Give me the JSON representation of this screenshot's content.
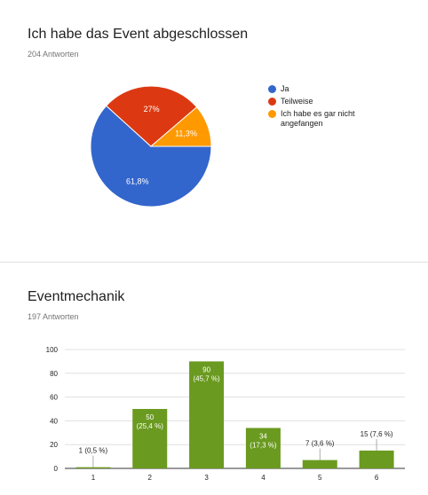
{
  "poll1": {
    "title": "Ich habe das Event abgeschlossen",
    "responses": "204 Antworten",
    "chart_data": {
      "type": "pie",
      "slices": [
        {
          "label": "Ja",
          "value": 61.8,
          "display": "61,8%",
          "color": "#3366cc"
        },
        {
          "label": "Teilweise",
          "value": 27,
          "display": "27%",
          "color": "#dc3912"
        },
        {
          "label": "Ich habe es gar nicht angefangen",
          "value": 11.3,
          "display": "11,3%",
          "color": "#ff9900"
        }
      ],
      "legend": "right"
    }
  },
  "poll2": {
    "title": "Eventmechanik",
    "responses": "197 Antworten",
    "chart_data": {
      "type": "bar",
      "categories": [
        "1",
        "2",
        "3",
        "4",
        "5",
        "6"
      ],
      "values": [
        1,
        50,
        90,
        34,
        7,
        15
      ],
      "labels": [
        [
          "1 (0,5 %)"
        ],
        [
          "50",
          "(25,4 %)"
        ],
        [
          "90",
          "(45,7 %)"
        ],
        [
          "34",
          "(17,3 %)"
        ],
        [
          "7 (3,6 %)"
        ],
        [
          "15 (7,6 %)"
        ]
      ],
      "ylim": [
        0,
        100
      ],
      "yticks": [
        0,
        20,
        40,
        60,
        80,
        100
      ],
      "grid": true,
      "color": "#6a9a1f"
    }
  }
}
